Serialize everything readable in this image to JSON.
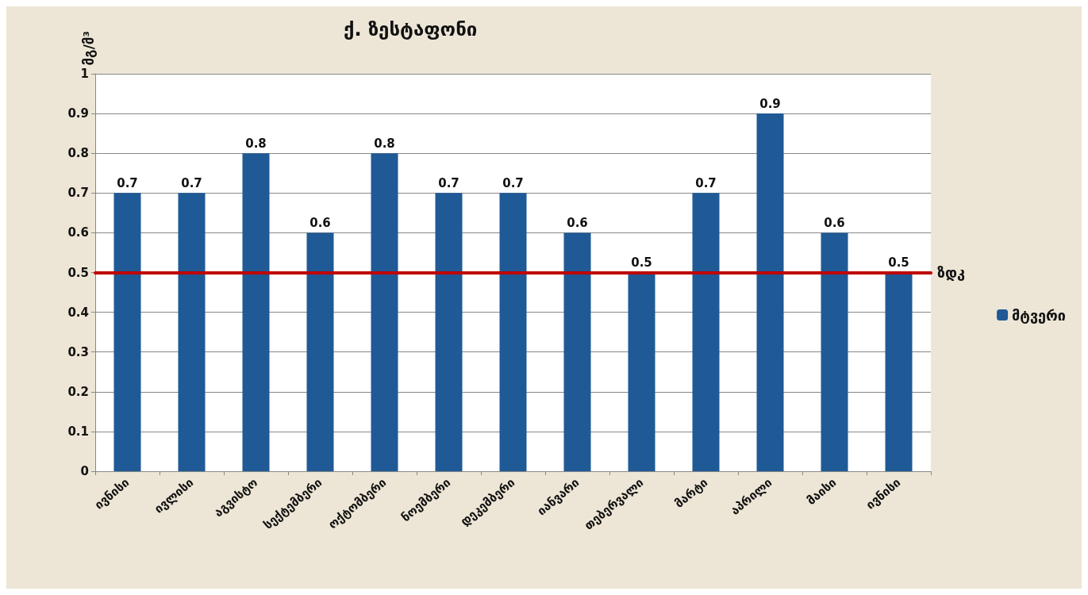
{
  "chart_data": {
    "type": "bar",
    "title": "ქ. ზესტაფონი",
    "ylabel": "მგ/მ³",
    "categories": [
      "ივნისი",
      "ივლისი",
      "აგვისტო",
      "სექტემბერი",
      "ოქტომბერი",
      "ნოემბერი",
      "დეკემბერი",
      "იანვარი",
      "თებერვალი",
      "მარტი",
      "აპრილი",
      "მაისი",
      "ივნისი"
    ],
    "series": [
      {
        "name": "მტვერი",
        "color": "#1f5a96",
        "values": [
          0.7,
          0.7,
          0.8,
          0.6,
          0.8,
          0.7,
          0.7,
          0.6,
          0.5,
          0.7,
          0.9,
          0.6,
          0.5
        ]
      }
    ],
    "ylim": [
      0,
      1
    ],
    "yticks": [
      0,
      0.1,
      0.2,
      0.3,
      0.4,
      0.5,
      0.6,
      0.7,
      0.8,
      0.9,
      1
    ],
    "ref_lines": [
      {
        "axis": "y",
        "value": 0.5,
        "label": "ზდკ",
        "color": "#c00000",
        "line_style": "solid"
      }
    ],
    "grid": "y",
    "legend": "right",
    "data_labels": true
  }
}
